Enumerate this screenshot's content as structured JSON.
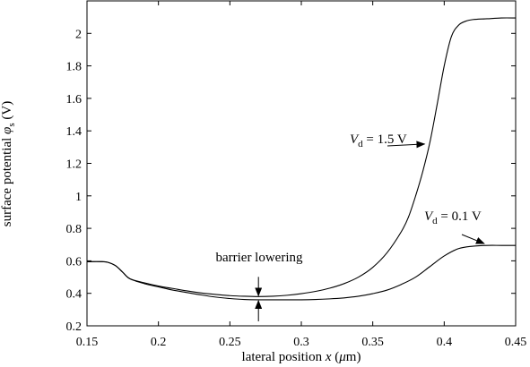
{
  "chart_data": {
    "type": "line",
    "title": "",
    "xlabel": "lateral position x (μm)",
    "ylabel": "surface potential φs (V)",
    "xlim": [
      0.15,
      0.45
    ],
    "ylim": [
      0.2,
      2.2
    ],
    "x_ticks": [
      "0.15",
      "0.2",
      "0.25",
      "0.3",
      "0.35",
      "0.4",
      "0.45"
    ],
    "y_ticks": [
      "0.2",
      "0.4",
      "0.6",
      "0.8",
      "1",
      "1.2",
      "1.4",
      "1.6",
      "1.8",
      "2"
    ],
    "grid": false,
    "series": [
      {
        "name": "Vd = 1.5 V",
        "x": [
          0.15,
          0.16,
          0.165,
          0.17,
          0.175,
          0.18,
          0.19,
          0.2,
          0.21,
          0.22,
          0.23,
          0.24,
          0.25,
          0.26,
          0.27,
          0.28,
          0.29,
          0.3,
          0.31,
          0.32,
          0.33,
          0.34,
          0.35,
          0.36,
          0.37,
          0.375,
          0.38,
          0.385,
          0.39,
          0.395,
          0.4,
          0.405,
          0.41,
          0.415,
          0.42,
          0.43,
          0.44,
          0.45
        ],
        "y": [
          0.595,
          0.595,
          0.59,
          0.57,
          0.53,
          0.49,
          0.465,
          0.445,
          0.43,
          0.415,
          0.402,
          0.393,
          0.386,
          0.382,
          0.38,
          0.382,
          0.388,
          0.398,
          0.412,
          0.432,
          0.46,
          0.5,
          0.56,
          0.65,
          0.78,
          0.87,
          1.0,
          1.15,
          1.33,
          1.56,
          1.8,
          1.98,
          2.05,
          2.075,
          2.085,
          2.09,
          2.095,
          2.095
        ]
      },
      {
        "name": "Vd = 0.1 V",
        "x": [
          0.15,
          0.16,
          0.165,
          0.17,
          0.175,
          0.18,
          0.19,
          0.2,
          0.21,
          0.22,
          0.23,
          0.24,
          0.25,
          0.26,
          0.27,
          0.28,
          0.29,
          0.3,
          0.31,
          0.32,
          0.33,
          0.34,
          0.35,
          0.36,
          0.37,
          0.38,
          0.39,
          0.4,
          0.41,
          0.42,
          0.43,
          0.44,
          0.45
        ],
        "y": [
          0.595,
          0.595,
          0.59,
          0.57,
          0.53,
          0.49,
          0.46,
          0.44,
          0.42,
          0.405,
          0.39,
          0.377,
          0.368,
          0.362,
          0.36,
          0.36,
          0.36,
          0.36,
          0.362,
          0.366,
          0.372,
          0.382,
          0.398,
          0.42,
          0.455,
          0.5,
          0.565,
          0.63,
          0.675,
          0.69,
          0.695,
          0.695,
          0.695
        ]
      }
    ],
    "annotations": [
      {
        "id": "vd15",
        "prefix": "V",
        "subscript": "d",
        "suffix": " = 1.5 V",
        "point_to": [
          0.39,
          1.33
        ]
      },
      {
        "id": "vd01",
        "prefix": "V",
        "subscript": "d",
        "suffix": " = 0.1 V",
        "point_to": [
          0.428,
          0.695
        ]
      },
      {
        "id": "barrier",
        "text": "barrier lowering",
        "at_x": 0.27,
        "span": [
          0.36,
          0.38
        ]
      }
    ]
  },
  "colors": {
    "line": "#000000",
    "background": "#ffffff"
  }
}
